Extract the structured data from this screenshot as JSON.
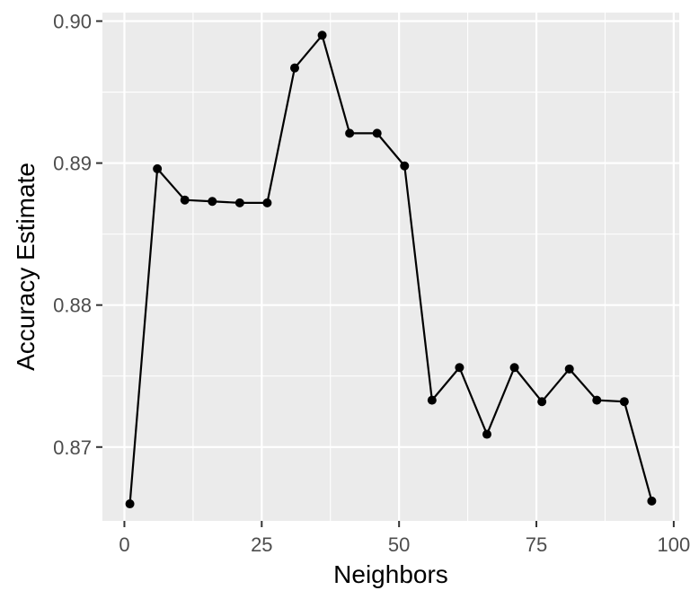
{
  "chart_data": {
    "type": "line",
    "title": "",
    "xlabel": "Neighbors",
    "ylabel": "Accuracy Estimate",
    "xlim": [
      -4,
      101
    ],
    "ylim": [
      0.8648,
      0.9006
    ],
    "x_ticks": [
      0,
      25,
      50,
      75,
      100
    ],
    "x_tick_labels": [
      "0",
      "25",
      "50",
      "75",
      "100"
    ],
    "y_ticks": [
      0.87,
      0.88,
      0.89,
      0.9
    ],
    "y_tick_labels": [
      "0.87",
      "0.88",
      "0.89",
      "0.90"
    ],
    "grid": true,
    "colors": {
      "panel": "#ebebeb",
      "grid": "#ffffff",
      "line": "#000000",
      "point": "#000000",
      "tick": "#333333",
      "tick_label": "#4d4d4d",
      "axis_title": "#000000"
    },
    "series": [
      {
        "x": [
          1,
          6,
          11,
          16,
          21,
          26,
          31,
          36,
          41,
          46,
          51,
          56,
          61,
          66,
          71,
          76,
          81,
          86,
          91,
          96
        ],
        "values": [
          0.866,
          0.8896,
          0.8874,
          0.8873,
          0.8872,
          0.8872,
          0.8967,
          0.899,
          0.8921,
          0.8921,
          0.8898,
          0.8733,
          0.8756,
          0.8709,
          0.8756,
          0.8732,
          0.8755,
          0.8733,
          0.8732,
          0.8662
        ]
      }
    ]
  }
}
